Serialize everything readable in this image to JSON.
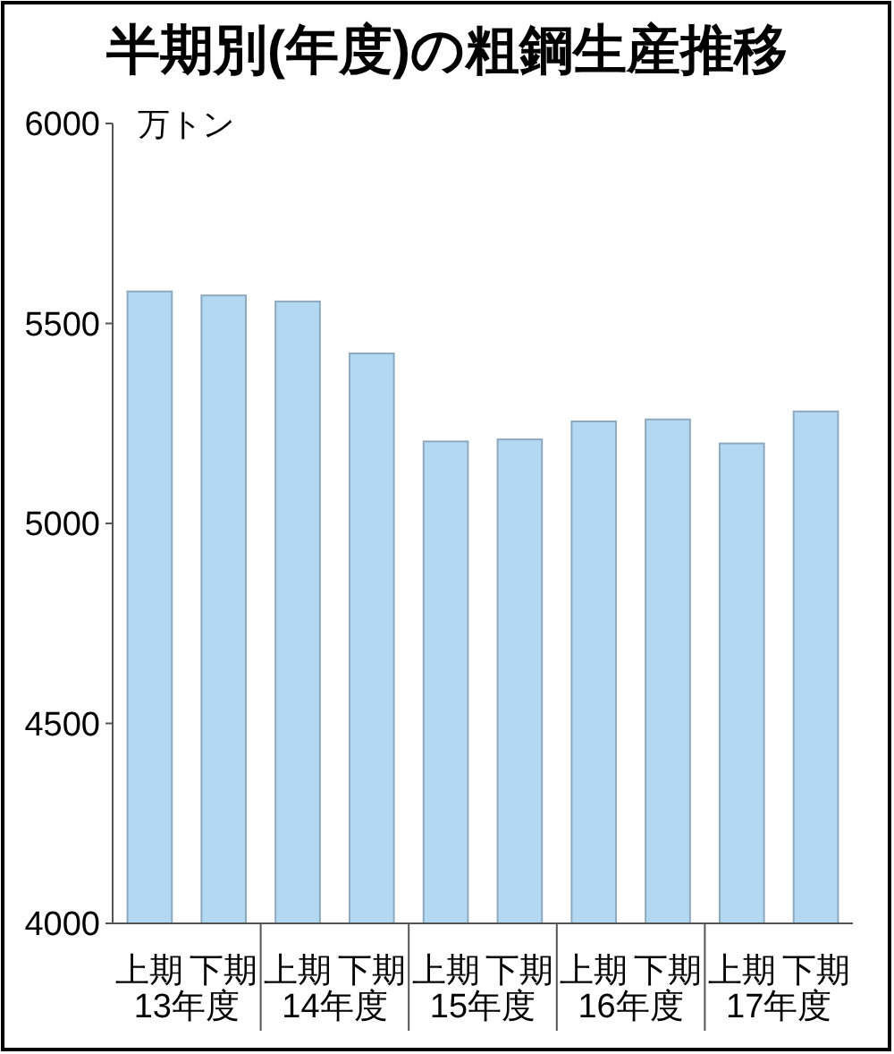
{
  "chart_data": {
    "type": "bar",
    "title": "半期別(年度)の粗鋼生産推移",
    "ylabel": "万トン",
    "categories": [
      "上期",
      "下期",
      "上期",
      "下期",
      "上期",
      "下期",
      "上期",
      "下期",
      "上期",
      "下期"
    ],
    "values": [
      5580,
      5570,
      5555,
      5425,
      5205,
      5210,
      5255,
      5260,
      5200,
      5280
    ],
    "color": "#b2d8f2",
    "ylim": [
      4000,
      6000
    ],
    "yticks": [
      4000,
      4500,
      5000,
      5500,
      6000
    ],
    "annotations": [
      "13年度",
      "14年度",
      "15年度",
      "16年度",
      "17年度"
    ]
  }
}
